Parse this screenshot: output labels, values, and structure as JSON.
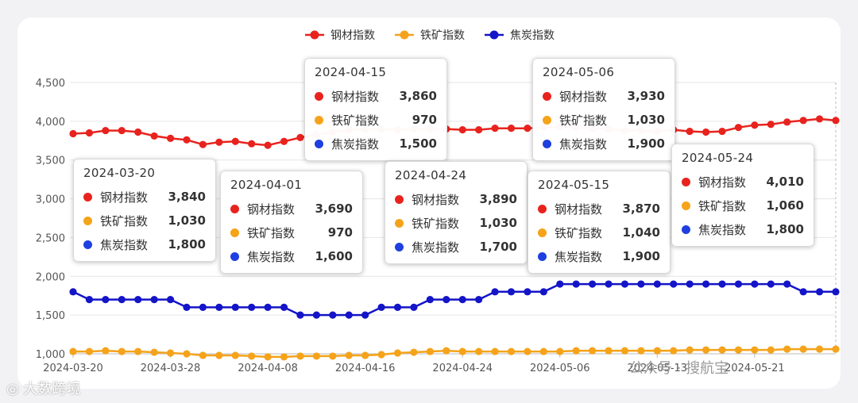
{
  "chart_data": {
    "type": "line",
    "title": "",
    "xlabel": "",
    "ylabel": "",
    "ylim": [
      1000,
      4500
    ],
    "yticks": [
      1000,
      1500,
      2000,
      2500,
      3000,
      3500,
      4000,
      4500
    ],
    "ytick_labels": [
      "1,000",
      "1,500",
      "2,000",
      "2,500",
      "3,000",
      "3,500",
      "4,000",
      "4,500"
    ],
    "xtick_labels": [
      "2024-03-20",
      "2024-03-28",
      "2024-04-08",
      "2024-04-16",
      "2024-04-24",
      "2024-05-06",
      "2024-05-13",
      "2024-05-21"
    ],
    "xtick_index": [
      0,
      6,
      12,
      18,
      24,
      30,
      36,
      42
    ],
    "legend_position": "top-center",
    "grid": true,
    "x_count": 48,
    "series": [
      {
        "name": "钢材指数",
        "color": "#e8231e",
        "values": [
          3840,
          3850,
          3880,
          3880,
          3860,
          3810,
          3780,
          3760,
          3700,
          3730,
          3740,
          3710,
          3690,
          3740,
          3790,
          3830,
          3860,
          3890,
          3900,
          3900,
          3890,
          3900,
          3900,
          3900,
          3890,
          3890,
          3910,
          3910,
          3910,
          3920,
          3930,
          3920,
          3910,
          3900,
          3880,
          3880,
          3870,
          3890,
          3870,
          3860,
          3870,
          3920,
          3950,
          3960,
          3990,
          4010,
          4030,
          4010
        ]
      },
      {
        "name": "铁矿指数",
        "color": "#f5a31a",
        "values": [
          1030,
          1030,
          1040,
          1030,
          1030,
          1020,
          1010,
          1000,
          980,
          980,
          980,
          970,
          960,
          960,
          970,
          970,
          970,
          980,
          980,
          990,
          1010,
          1020,
          1030,
          1040,
          1030,
          1030,
          1030,
          1030,
          1030,
          1030,
          1030,
          1040,
          1040,
          1040,
          1040,
          1040,
          1040,
          1040,
          1050,
          1050,
          1050,
          1050,
          1050,
          1050,
          1060,
          1060,
          1060,
          1060
        ]
      },
      {
        "name": "焦炭指数",
        "color": "#1414c8",
        "values": [
          1800,
          1700,
          1700,
          1700,
          1700,
          1700,
          1700,
          1600,
          1600,
          1600,
          1600,
          1600,
          1600,
          1600,
          1500,
          1500,
          1500,
          1500,
          1500,
          1600,
          1600,
          1600,
          1700,
          1700,
          1700,
          1700,
          1800,
          1800,
          1800,
          1800,
          1900,
          1900,
          1900,
          1900,
          1900,
          1900,
          1900,
          1900,
          1900,
          1900,
          1900,
          1900,
          1900,
          1900,
          1900,
          1800,
          1800,
          1800
        ]
      }
    ]
  },
  "tooltips": [
    {
      "date": "2024-03-20",
      "rows": [
        {
          "name": "钢材指数",
          "value": "3,840",
          "color": "#e8231e"
        },
        {
          "name": "铁矿指数",
          "value": "1,030",
          "color": "#f5a31a"
        },
        {
          "name": "焦炭指数",
          "value": "1,800",
          "color": "#1f3fe0"
        }
      ]
    },
    {
      "date": "2024-04-01",
      "rows": [
        {
          "name": "钢材指数",
          "value": "3,690",
          "color": "#e8231e"
        },
        {
          "name": "铁矿指数",
          "value": "970",
          "color": "#f5a31a"
        },
        {
          "name": "焦炭指数",
          "value": "1,600",
          "color": "#1f3fe0"
        }
      ]
    },
    {
      "date": "2024-04-15",
      "rows": [
        {
          "name": "钢材指数",
          "value": "3,860",
          "color": "#e8231e"
        },
        {
          "name": "铁矿指数",
          "value": "970",
          "color": "#f5a31a"
        },
        {
          "name": "焦炭指数",
          "value": "1,500",
          "color": "#1f3fe0"
        }
      ]
    },
    {
      "date": "2024-04-24",
      "rows": [
        {
          "name": "钢材指数",
          "value": "3,890",
          "color": "#e8231e"
        },
        {
          "name": "铁矿指数",
          "value": "1,030",
          "color": "#f5a31a"
        },
        {
          "name": "焦炭指数",
          "value": "1,700",
          "color": "#1f3fe0"
        }
      ]
    },
    {
      "date": "2024-05-06",
      "rows": [
        {
          "name": "钢材指数",
          "value": "3,930",
          "color": "#e8231e"
        },
        {
          "name": "铁矿指数",
          "value": "1,030",
          "color": "#f5a31a"
        },
        {
          "name": "焦炭指数",
          "value": "1,900",
          "color": "#1f3fe0"
        }
      ]
    },
    {
      "date": "2024-05-15",
      "rows": [
        {
          "name": "钢材指数",
          "value": "3,870",
          "color": "#e8231e"
        },
        {
          "name": "铁矿指数",
          "value": "1,040",
          "color": "#f5a31a"
        },
        {
          "name": "焦炭指数",
          "value": "1,900",
          "color": "#1f3fe0"
        }
      ]
    },
    {
      "date": "2024-05-24",
      "rows": [
        {
          "name": "钢材指数",
          "value": "4,010",
          "color": "#e8231e"
        },
        {
          "name": "铁矿指数",
          "value": "1,060",
          "color": "#f5a31a"
        },
        {
          "name": "焦炭指数",
          "value": "1,800",
          "color": "#1f3fe0"
        }
      ]
    }
  ],
  "footer": {
    "logo_text": "◎ 大数跨境",
    "watermark_text": "公众号 · 搜航宝"
  }
}
